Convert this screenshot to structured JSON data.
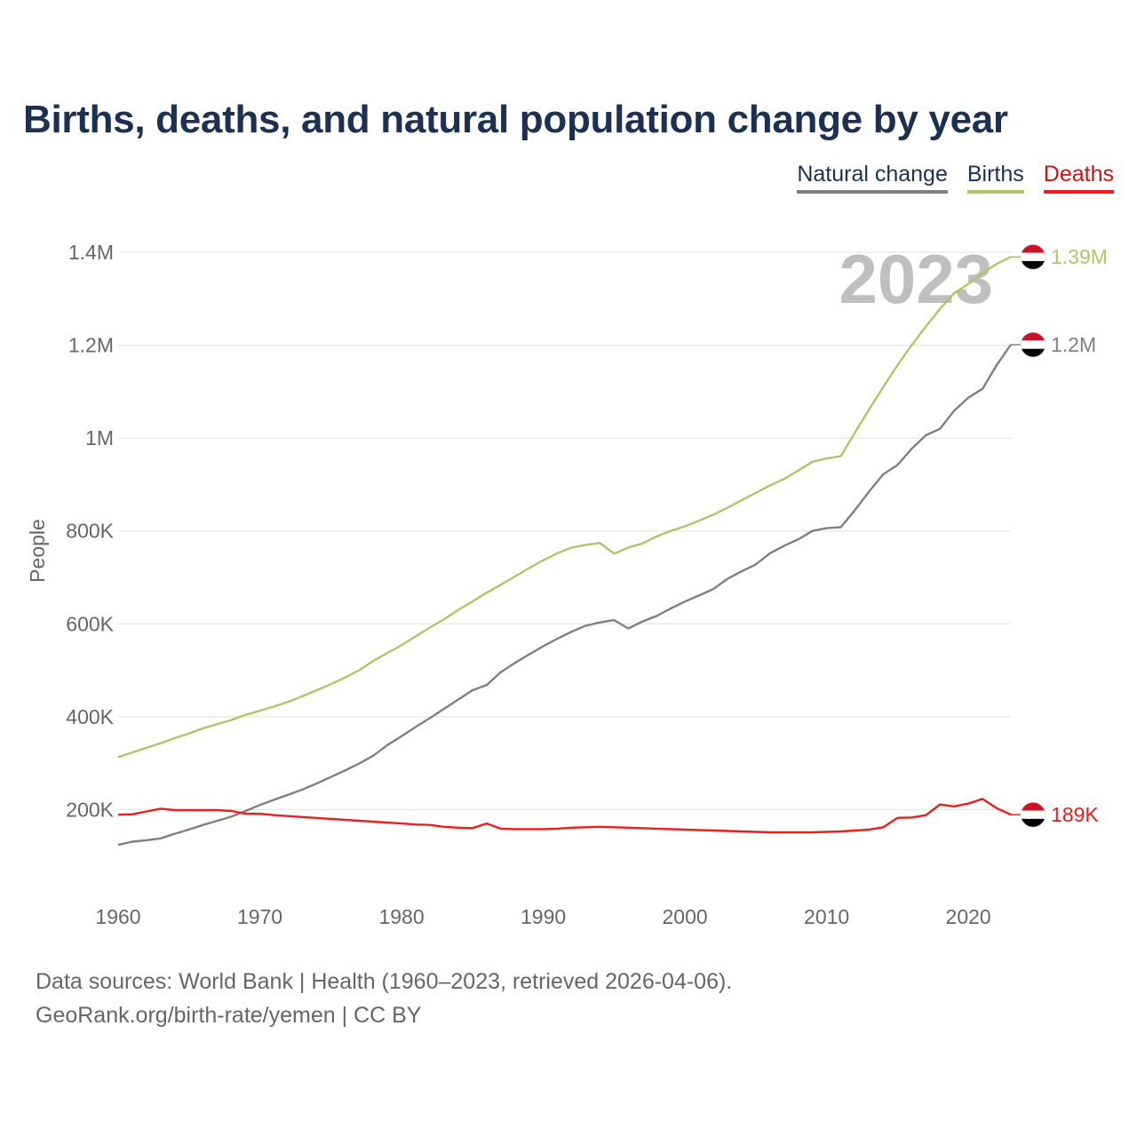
{
  "title": "Births, deaths, and natural population change by year",
  "legend": {
    "natural": "Natural change",
    "births": "Births",
    "deaths": "Deaths"
  },
  "year_watermark": "2023",
  "footer": {
    "line1": "Data sources: World Bank | Health (1960–2023, retrieved 2026-04-06).",
    "line2": "GeoRank.org/birth-rate/yemen | CC BY"
  },
  "colors": {
    "births": "#b3c36a",
    "natural": "#808080",
    "deaths": "#ee1c1c",
    "grid": "#e6e6e6",
    "axis": "#666666"
  },
  "chart_data": {
    "type": "line",
    "title": "Births, deaths, and natural population change by year",
    "xlabel": "",
    "ylabel": "People",
    "xlim": [
      1960,
      2023
    ],
    "ylim": [
      0,
      1400000
    ],
    "x_ticks": [
      1960,
      1970,
      1980,
      1990,
      2000,
      2010,
      2020
    ],
    "y_ticks": [
      {
        "value": 200000,
        "label": "200K"
      },
      {
        "value": 400000,
        "label": "400K"
      },
      {
        "value": 600000,
        "label": "600K"
      },
      {
        "value": 800000,
        "label": "800K"
      },
      {
        "value": 1000000,
        "label": "1M"
      },
      {
        "value": 1200000,
        "label": "1.2M"
      },
      {
        "value": 1400000,
        "label": "1.4M"
      }
    ],
    "grid": true,
    "legend_position": "top-right",
    "x": [
      1960,
      1961,
      1962,
      1963,
      1964,
      1965,
      1966,
      1967,
      1968,
      1969,
      1970,
      1971,
      1972,
      1973,
      1974,
      1975,
      1976,
      1977,
      1978,
      1979,
      1980,
      1981,
      1982,
      1983,
      1984,
      1985,
      1986,
      1987,
      1988,
      1989,
      1990,
      1991,
      1992,
      1993,
      1994,
      1995,
      1996,
      1997,
      1998,
      1999,
      2000,
      2001,
      2002,
      2003,
      2004,
      2005,
      2006,
      2007,
      2008,
      2009,
      2010,
      2011,
      2012,
      2013,
      2014,
      2015,
      2016,
      2017,
      2018,
      2019,
      2020,
      2021,
      2022,
      2023
    ],
    "series": [
      {
        "name": "Births",
        "key": "births",
        "end_label": "1.39M",
        "values": [
          313000,
          323000,
          333000,
          343000,
          354000,
          364000,
          375000,
          384000,
          393000,
          404000,
          413000,
          422000,
          432000,
          444000,
          457000,
          470000,
          484000,
          500000,
          520000,
          537000,
          554000,
          573000,
          592000,
          610000,
          630000,
          648000,
          667000,
          684000,
          702000,
          720000,
          737000,
          752000,
          764000,
          770000,
          774000,
          751000,
          764000,
          773000,
          788000,
          800000,
          810000,
          822000,
          835000,
          850000,
          866000,
          882000,
          898000,
          912000,
          930000,
          949000,
          956000,
          961000,
          1012000,
          1062000,
          1110000,
          1157000,
          1200000,
          1240000,
          1278000,
          1312000,
          1332000,
          1355000,
          1375000,
          1390000
        ]
      },
      {
        "name": "Natural change",
        "key": "natural",
        "end_label": "1.2M",
        "values": [
          124000,
          131000,
          134000,
          138000,
          148000,
          157000,
          167000,
          176000,
          185000,
          197000,
          210000,
          221000,
          232000,
          243000,
          256000,
          270000,
          284000,
          299000,
          316000,
          339000,
          358000,
          378000,
          397000,
          417000,
          437000,
          457000,
          468000,
          496000,
          516000,
          534000,
          552000,
          568000,
          583000,
          596000,
          603000,
          608000,
          590000,
          605000,
          617000,
          633000,
          648000,
          661000,
          675000,
          697000,
          713000,
          728000,
          752000,
          768000,
          782000,
          800000,
          806000,
          808000,
          845000,
          885000,
          922000,
          942000,
          977000,
          1006000,
          1020000,
          1059000,
          1087000,
          1106000,
          1157000,
          1201000
        ]
      },
      {
        "name": "Deaths",
        "key": "deaths",
        "end_label": "189K",
        "values": [
          189000,
          190000,
          196000,
          202000,
          199000,
          199000,
          199000,
          199000,
          197000,
          191000,
          191000,
          188000,
          186000,
          184000,
          182000,
          180000,
          178000,
          176000,
          174000,
          172000,
          170000,
          168000,
          167000,
          163000,
          161000,
          160000,
          170000,
          159000,
          158000,
          158000,
          158000,
          159000,
          161000,
          162000,
          163000,
          162000,
          161000,
          160000,
          159000,
          158000,
          157000,
          156000,
          155000,
          154000,
          153000,
          152000,
          151000,
          151000,
          151000,
          151000,
          152000,
          153000,
          155000,
          157000,
          162000,
          182000,
          183000,
          188000,
          211000,
          207000,
          213000,
          223000,
          203000,
          189000
        ]
      }
    ]
  }
}
